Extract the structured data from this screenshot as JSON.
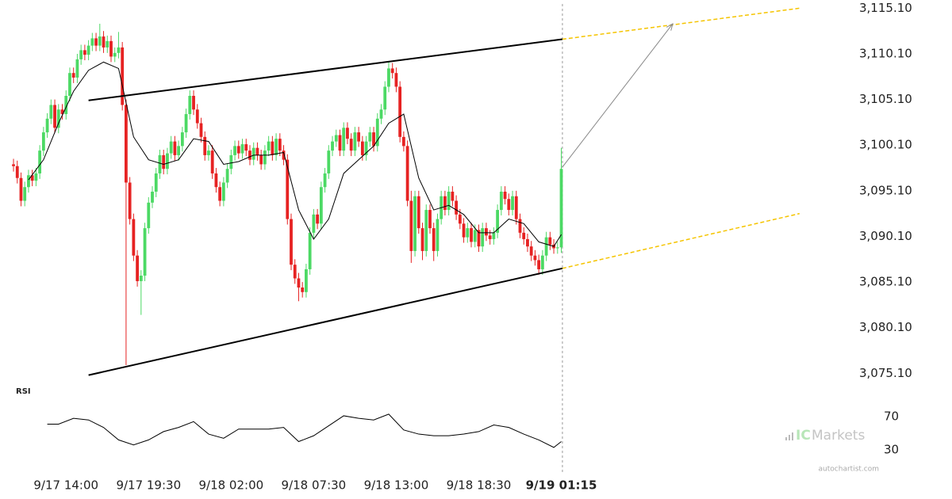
{
  "chart_data": {
    "type": "candlestick",
    "up_color": "#4cd964",
    "down_color": "#e62222",
    "xlim": [
      -3.6,
      216.3
    ],
    "ylim": [
      3074.0,
      3116.0
    ],
    "xticks": [
      {
        "value": 14,
        "label": "9/17 14:00"
      },
      {
        "value": 36,
        "label": "9/17 19:30"
      },
      {
        "value": 58,
        "label": "9/18 02:00"
      },
      {
        "value": 80,
        "label": "9/18 07:30"
      },
      {
        "value": 102,
        "label": "9/18 13:00"
      },
      {
        "value": 124,
        "label": "9/18 18:30"
      },
      {
        "value": 146,
        "label": "9/19 01:15"
      }
    ],
    "yticks": [
      {
        "value": 3115.1,
        "label": "3,115.10"
      },
      {
        "value": 3110.1,
        "label": "3,110.10"
      },
      {
        "value": 3105.1,
        "label": "3,105.10"
      },
      {
        "value": 3100.1,
        "label": "3,100.10"
      },
      {
        "value": 3095.1,
        "label": "3,095.10"
      },
      {
        "value": 3090.1,
        "label": "3,090.10"
      },
      {
        "value": 3085.1,
        "label": "3,085.10"
      },
      {
        "value": 3080.1,
        "label": "3,080.10"
      },
      {
        "value": 3075.1,
        "label": "3,075.10"
      }
    ],
    "ohlc": [
      [
        3098.0,
        3098.6,
        3097.2,
        3097.8
      ],
      [
        3097.8,
        3098.4,
        3095.9,
        3096.5
      ],
      [
        3096.5,
        3097.1,
        3093.4,
        3094.0
      ],
      [
        3094.0,
        3096.1,
        3093.4,
        3095.5
      ],
      [
        3095.5,
        3097.4,
        3094.9,
        3096.8
      ],
      [
        3096.8,
        3097.4,
        3095.6,
        3096.2
      ],
      [
        3096.2,
        3097.6,
        3095.6,
        3097.0
      ],
      [
        3097.0,
        3100.1,
        3096.4,
        3099.5
      ],
      [
        3099.5,
        3102.1,
        3098.9,
        3101.5
      ],
      [
        3101.5,
        3103.6,
        3100.9,
        3103.0
      ],
      [
        3103.0,
        3105.1,
        3102.4,
        3104.5
      ],
      [
        3104.5,
        3105.1,
        3101.4,
        3102.0
      ],
      [
        3102.0,
        3104.6,
        3101.4,
        3104.0
      ],
      [
        3104.0,
        3104.6,
        3102.9,
        3103.5
      ],
      [
        3103.5,
        3106.1,
        3102.9,
        3105.5
      ],
      [
        3105.5,
        3108.6,
        3104.9,
        3108.0
      ],
      [
        3108.0,
        3108.6,
        3106.9,
        3107.5
      ],
      [
        3107.5,
        3110.1,
        3106.9,
        3109.5
      ],
      [
        3109.5,
        3111.1,
        3108.9,
        3110.5
      ],
      [
        3110.5,
        3111.1,
        3109.4,
        3110.0
      ],
      [
        3110.0,
        3111.6,
        3109.4,
        3111.0
      ],
      [
        3111.0,
        3112.4,
        3110.4,
        3111.8
      ],
      [
        3111.8,
        3112.4,
        3110.4,
        3111.0
      ],
      [
        3111.0,
        3113.4,
        3110.4,
        3112.0
      ],
      [
        3112.0,
        3112.6,
        3110.2,
        3110.8
      ],
      [
        3110.8,
        3112.1,
        3110.2,
        3111.5
      ],
      [
        3111.5,
        3112.1,
        3109.2,
        3109.8
      ],
      [
        3109.8,
        3110.8,
        3109.2,
        3110.2
      ],
      [
        3110.2,
        3112.5,
        3109.6,
        3110.8
      ],
      [
        3110.8,
        3111.4,
        3103.9,
        3104.5
      ],
      [
        3104.5,
        3105.1,
        3076.0,
        3096.0
      ],
      [
        3096.0,
        3096.6,
        3091.4,
        3092.0
      ],
      [
        3092.0,
        3092.6,
        3087.4,
        3088.0
      ],
      [
        3088.0,
        3088.6,
        3084.6,
        3085.2
      ],
      [
        3085.2,
        3086.4,
        3081.5,
        3085.8
      ],
      [
        3085.8,
        3091.6,
        3085.2,
        3091.0
      ],
      [
        3091.0,
        3094.4,
        3090.4,
        3093.8
      ],
      [
        3093.8,
        3095.6,
        3093.2,
        3095.0
      ],
      [
        3095.0,
        3097.6,
        3094.4,
        3097.0
      ],
      [
        3097.0,
        3099.6,
        3096.4,
        3099.0
      ],
      [
        3099.0,
        3099.6,
        3096.9,
        3097.5
      ],
      [
        3097.5,
        3099.8,
        3096.9,
        3099.2
      ],
      [
        3099.2,
        3101.1,
        3098.6,
        3100.5
      ],
      [
        3100.5,
        3101.1,
        3098.4,
        3099.0
      ],
      [
        3099.0,
        3100.6,
        3098.4,
        3100.0
      ],
      [
        3100.0,
        3102.1,
        3099.4,
        3101.5
      ],
      [
        3101.5,
        3104.1,
        3100.9,
        3103.5
      ],
      [
        3103.5,
        3106.1,
        3102.9,
        3105.5
      ],
      [
        3105.5,
        3106.1,
        3103.4,
        3104.0
      ],
      [
        3104.0,
        3104.6,
        3101.9,
        3102.5
      ],
      [
        3102.5,
        3103.1,
        3100.4,
        3101.0
      ],
      [
        3101.0,
        3101.6,
        3098.4,
        3099.0
      ],
      [
        3099.0,
        3100.1,
        3098.4,
        3099.5
      ],
      [
        3099.5,
        3100.1,
        3096.4,
        3097.0
      ],
      [
        3097.0,
        3097.6,
        3094.9,
        3095.5
      ],
      [
        3095.5,
        3096.1,
        3093.4,
        3094.0
      ],
      [
        3094.0,
        3096.6,
        3093.4,
        3096.0
      ],
      [
        3096.0,
        3098.1,
        3095.4,
        3097.5
      ],
      [
        3097.5,
        3099.6,
        3096.9,
        3099.0
      ],
      [
        3099.0,
        3100.6,
        3098.4,
        3100.0
      ],
      [
        3100.0,
        3100.6,
        3098.6,
        3099.2
      ],
      [
        3099.2,
        3100.8,
        3098.6,
        3100.2
      ],
      [
        3100.2,
        3100.8,
        3098.9,
        3099.5
      ],
      [
        3099.5,
        3100.1,
        3097.9,
        3098.5
      ],
      [
        3098.5,
        3100.4,
        3097.9,
        3099.8
      ],
      [
        3099.8,
        3100.4,
        3098.4,
        3099.0
      ],
      [
        3099.0,
        3099.6,
        3097.4,
        3098.0
      ],
      [
        3098.0,
        3100.1,
        3097.4,
        3099.5
      ],
      [
        3099.5,
        3101.1,
        3098.9,
        3100.5
      ],
      [
        3100.5,
        3101.1,
        3098.4,
        3099.0
      ],
      [
        3099.0,
        3101.4,
        3098.4,
        3100.8
      ],
      [
        3100.8,
        3101.4,
        3098.9,
        3099.5
      ],
      [
        3099.5,
        3100.1,
        3097.9,
        3098.5
      ],
      [
        3098.5,
        3099.1,
        3091.4,
        3092.0
      ],
      [
        3092.0,
        3092.6,
        3086.4,
        3087.0
      ],
      [
        3087.0,
        3087.6,
        3084.9,
        3085.5
      ],
      [
        3085.5,
        3086.1,
        3083.0,
        3084.5
      ],
      [
        3084.5,
        3085.1,
        3083.4,
        3084.0
      ],
      [
        3084.0,
        3087.1,
        3083.4,
        3086.5
      ],
      [
        3086.5,
        3091.1,
        3085.9,
        3090.5
      ],
      [
        3090.5,
        3093.1,
        3089.9,
        3092.5
      ],
      [
        3092.5,
        3093.1,
        3090.9,
        3091.5
      ],
      [
        3091.5,
        3096.1,
        3090.9,
        3095.5
      ],
      [
        3095.5,
        3097.6,
        3094.9,
        3097.0
      ],
      [
        3097.0,
        3100.1,
        3096.4,
        3099.5
      ],
      [
        3099.5,
        3101.1,
        3098.9,
        3100.5
      ],
      [
        3100.5,
        3101.8,
        3099.9,
        3101.2
      ],
      [
        3101.2,
        3101.8,
        3098.9,
        3099.5
      ],
      [
        3099.5,
        3102.6,
        3098.9,
        3102.0
      ],
      [
        3102.0,
        3102.6,
        3100.2,
        3100.8
      ],
      [
        3100.8,
        3101.4,
        3098.9,
        3099.5
      ],
      [
        3099.5,
        3102.1,
        3098.9,
        3101.5
      ],
      [
        3101.5,
        3102.1,
        3099.9,
        3100.5
      ],
      [
        3100.5,
        3101.1,
        3098.4,
        3099.0
      ],
      [
        3099.0,
        3101.1,
        3098.4,
        3100.5
      ],
      [
        3100.5,
        3102.1,
        3099.9,
        3101.5
      ],
      [
        3101.5,
        3102.1,
        3099.4,
        3100.0
      ],
      [
        3100.0,
        3103.6,
        3099.4,
        3103.0
      ],
      [
        3103.0,
        3104.6,
        3102.4,
        3104.0
      ],
      [
        3104.0,
        3107.1,
        3103.4,
        3106.5
      ],
      [
        3106.5,
        3109.2,
        3105.9,
        3108.5
      ],
      [
        3108.5,
        3109.1,
        3107.4,
        3108.0
      ],
      [
        3108.0,
        3108.6,
        3105.9,
        3106.5
      ],
      [
        3106.5,
        3107.1,
        3100.4,
        3101.0
      ],
      [
        3101.0,
        3101.6,
        3099.4,
        3100.0
      ],
      [
        3100.0,
        3100.6,
        3093.4,
        3094.0
      ],
      [
        3094.0,
        3095.1,
        3087.2,
        3088.5
      ],
      [
        3088.5,
        3095.1,
        3087.9,
        3094.5
      ],
      [
        3094.5,
        3095.1,
        3090.4,
        3091.0
      ],
      [
        3091.0,
        3091.6,
        3087.5,
        3088.5
      ],
      [
        3088.5,
        3093.6,
        3087.9,
        3093.0
      ],
      [
        3093.0,
        3093.6,
        3090.4,
        3091.0
      ],
      [
        3091.0,
        3091.6,
        3087.4,
        3088.5
      ],
      [
        3088.5,
        3092.6,
        3087.9,
        3092.0
      ],
      [
        3092.0,
        3095.1,
        3091.4,
        3094.5
      ],
      [
        3094.5,
        3095.1,
        3092.4,
        3093.0
      ],
      [
        3093.0,
        3095.6,
        3092.4,
        3095.0
      ],
      [
        3095.0,
        3095.6,
        3093.4,
        3094.0
      ],
      [
        3094.0,
        3094.6,
        3091.9,
        3092.5
      ],
      [
        3092.5,
        3093.1,
        3090.9,
        3091.5
      ],
      [
        3091.5,
        3092.1,
        3089.4,
        3090.0
      ],
      [
        3090.0,
        3091.6,
        3089.4,
        3091.0
      ],
      [
        3091.0,
        3091.6,
        3088.9,
        3089.5
      ],
      [
        3089.5,
        3091.4,
        3088.9,
        3090.8
      ],
      [
        3090.8,
        3091.4,
        3088.4,
        3089.0
      ],
      [
        3089.0,
        3091.6,
        3088.4,
        3091.0
      ],
      [
        3091.0,
        3091.6,
        3089.6,
        3090.2
      ],
      [
        3090.2,
        3090.8,
        3089.2,
        3089.8
      ],
      [
        3089.8,
        3091.1,
        3089.2,
        3090.5
      ],
      [
        3090.5,
        3093.6,
        3089.9,
        3093.0
      ],
      [
        3093.0,
        3095.6,
        3092.4,
        3095.0
      ],
      [
        3095.0,
        3095.6,
        3093.6,
        3094.2
      ],
      [
        3094.2,
        3094.8,
        3092.4,
        3093.0
      ],
      [
        3093.0,
        3095.1,
        3092.4,
        3094.5
      ],
      [
        3094.5,
        3095.1,
        3091.4,
        3092.0
      ],
      [
        3092.0,
        3092.6,
        3089.9,
        3090.5
      ],
      [
        3090.5,
        3091.1,
        3089.2,
        3089.8
      ],
      [
        3089.8,
        3090.4,
        3088.4,
        3089.0
      ],
      [
        3089.0,
        3089.6,
        3087.4,
        3088.0
      ],
      [
        3088.0,
        3088.6,
        3086.9,
        3087.5
      ],
      [
        3087.5,
        3088.1,
        3085.9,
        3086.5
      ],
      [
        3086.5,
        3088.6,
        3085.9,
        3088.0
      ],
      [
        3088.0,
        3090.6,
        3087.4,
        3090.0
      ],
      [
        3090.0,
        3090.6,
        3088.6,
        3089.2
      ],
      [
        3089.2,
        3089.8,
        3088.2,
        3088.8
      ],
      [
        3088.8,
        3089.5,
        3088.2,
        3088.9
      ],
      [
        3088.9,
        3099.8,
        3088.3,
        3097.5
      ]
    ],
    "moving_average": {
      "color": "#000000",
      "x": [
        4,
        8,
        12,
        16,
        20,
        24,
        28,
        32,
        36,
        40,
        44,
        48,
        52,
        56,
        60,
        64,
        68,
        72,
        76,
        80,
        84,
        88,
        92,
        96,
        100,
        104,
        108,
        112,
        116,
        120,
        124,
        128,
        132,
        136,
        140,
        144,
        146
      ],
      "values": [
        3096.3,
        3098.5,
        3102.5,
        3106.0,
        3108.3,
        3109.2,
        3108.5,
        3101.0,
        3098.5,
        3098.0,
        3098.5,
        3100.8,
        3100.5,
        3098.0,
        3098.3,
        3099.0,
        3099.0,
        3099.3,
        3093.0,
        3089.8,
        3092.0,
        3097.0,
        3098.5,
        3100.0,
        3102.5,
        3103.5,
        3096.5,
        3093.0,
        3093.5,
        3092.5,
        3090.5,
        3090.5,
        3092.0,
        3091.5,
        3089.5,
        3089.0,
        3090.3
      ]
    },
    "trendlines": [
      {
        "color": "#000000",
        "x": [
          20,
          146.3
        ],
        "values": [
          3105.0,
          3111.7
        ]
      },
      {
        "color": "#000000",
        "x": [
          20,
          146.3
        ],
        "values": [
          3074.9,
          3086.6
        ]
      }
    ],
    "projections": [
      {
        "color": "#f5c400",
        "x": [
          146.3,
          209.5
        ],
        "values": [
          3111.7,
          3115.1
        ]
      },
      {
        "color": "#f5c400",
        "x": [
          146.3,
          209.5
        ],
        "values": [
          3086.6,
          3092.6
        ]
      }
    ],
    "forecast_arrow": {
      "color": "#888888",
      "x": [
        146.3,
        175.7
      ],
      "values": [
        3097.7,
        3113.4
      ]
    },
    "current_x": 146.3,
    "rsi": {
      "label": "RSI",
      "ylim": [
        20,
        80
      ],
      "yticks": [
        70,
        30
      ],
      "color": "#000000",
      "x": [
        9,
        12,
        16,
        20,
        24,
        28,
        32,
        36,
        40,
        44,
        48,
        52,
        56,
        60,
        64,
        68,
        72,
        76,
        80,
        84,
        88,
        92,
        96,
        100,
        104,
        108,
        112,
        116,
        120,
        124,
        128,
        132,
        136,
        140,
        144,
        146
      ],
      "values": [
        61,
        61,
        68,
        66,
        57,
        42,
        36,
        42,
        52,
        57,
        64,
        49,
        44,
        55,
        55,
        55,
        57,
        40,
        47,
        59,
        71,
        68,
        66,
        73,
        54,
        49,
        47,
        47,
        49,
        52,
        60,
        57,
        49,
        42,
        33,
        40
      ]
    }
  },
  "branding": {
    "prefix": "IC",
    "name": "Markets",
    "source": "autochartist.com"
  }
}
